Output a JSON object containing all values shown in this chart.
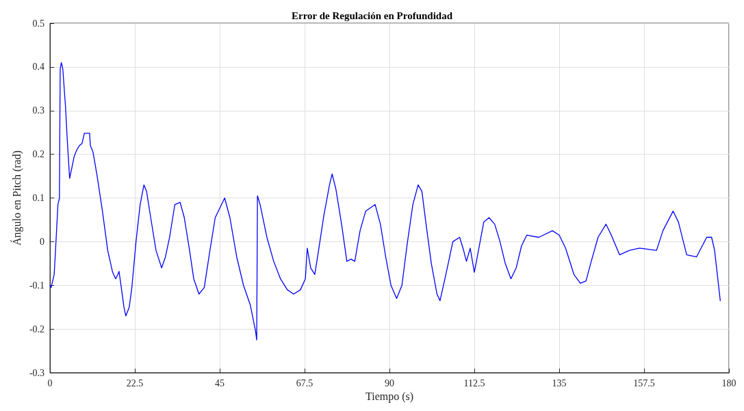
{
  "chart_data": {
    "type": "line",
    "title": "Error de Regulación en Profundidad",
    "xlabel": "Tiempo (s)",
    "ylabel": "Ángulo en Pitch (rad)",
    "xlim": [
      0,
      180
    ],
    "xticks": [
      0,
      22.5,
      45,
      67.5,
      90,
      112.5,
      135,
      157.5,
      180
    ],
    "ylim": [
      -0.3,
      0.5
    ],
    "yticks": [
      -0.3,
      -0.2,
      -0.1,
      0,
      0.1,
      0.2,
      0.3,
      0.4,
      0.5
    ],
    "grid": true,
    "marker": "none",
    "line_style": "solid",
    "series": [
      {
        "color": "#0000ff",
        "x": [
          0,
          0.3,
          1.1,
          1.4,
          2.1,
          2.5,
          2.7,
          3.0,
          3.4,
          4.1,
          4.6,
          5.2,
          5.7,
          6.4,
          7.1,
          7.8,
          8.5,
          9.1,
          10.5,
          10.7,
          11.4,
          12.5,
          13.9,
          15.3,
          16.6,
          17.4,
          18.0,
          18.3,
          18.9,
          19.6,
          20.1,
          21.0,
          21.7,
          22.8,
          23.9,
          24.9,
          25.6,
          26.7,
          28.1,
          29.6,
          30.6,
          31.7,
          33.1,
          34.5,
          35.6,
          37.0,
          38.1,
          39.5,
          40.9,
          42.4,
          43.8,
          46.3,
          47.7,
          49.5,
          51.3,
          53.1,
          54.5,
          54.8,
          55.0,
          55.7,
          57.5,
          59.3,
          61.1,
          62.9,
          64.6,
          66.4,
          67.7,
          68.2,
          69.1,
          70.2,
          71.2,
          72.6,
          74.1,
          74.8,
          75.8,
          77.3,
          78.7,
          79.8,
          80.8,
          82.2,
          83.7,
          86.2,
          87.6,
          89.0,
          90.4,
          91.9,
          93.3,
          94.7,
          96.2,
          97.6,
          98.6,
          99.7,
          101.1,
          102.6,
          103.4,
          104.7,
          105.7,
          106.8,
          108.6,
          109.5,
          110.4,
          111.4,
          112.5,
          113.6,
          115.0,
          116.4,
          117.9,
          119.3,
          120.7,
          122.2,
          123.6,
          125.0,
          126.4,
          129.6,
          133.2,
          135.0,
          136.7,
          138.9,
          140.6,
          142.1,
          143.5,
          145.3,
          147.4,
          148.8,
          151.0,
          153.6,
          156.3,
          160.8,
          162.5,
          165.2,
          166.6,
          168.8,
          171.4,
          174.1,
          175.4,
          176.2,
          177.7
        ],
        "values": [
          -0.1,
          -0.105,
          -0.075,
          -0.03,
          0.085,
          0.1,
          0.395,
          0.41,
          0.395,
          0.31,
          0.23,
          0.145,
          0.165,
          0.195,
          0.21,
          0.22,
          0.225,
          0.248,
          0.248,
          0.22,
          0.205,
          0.15,
          0.07,
          -0.02,
          -0.07,
          -0.085,
          -0.075,
          -0.068,
          -0.105,
          -0.15,
          -0.17,
          -0.15,
          -0.105,
          0.0,
          0.085,
          0.13,
          0.115,
          0.055,
          -0.02,
          -0.06,
          -0.035,
          0.01,
          0.085,
          0.09,
          0.055,
          -0.02,
          -0.085,
          -0.12,
          -0.105,
          -0.02,
          0.055,
          0.1,
          0.055,
          -0.035,
          -0.1,
          -0.145,
          -0.205,
          -0.225,
          0.105,
          0.085,
          0.01,
          -0.045,
          -0.085,
          -0.11,
          -0.12,
          -0.11,
          -0.085,
          -0.015,
          -0.06,
          -0.075,
          -0.02,
          0.06,
          0.13,
          0.155,
          0.12,
          0.04,
          -0.045,
          -0.04,
          -0.045,
          0.025,
          0.07,
          0.085,
          0.04,
          -0.035,
          -0.1,
          -0.13,
          -0.1,
          -0.005,
          0.085,
          0.13,
          0.115,
          0.04,
          -0.05,
          -0.12,
          -0.135,
          -0.085,
          -0.045,
          0.0,
          0.01,
          -0.015,
          -0.045,
          -0.015,
          -0.07,
          -0.02,
          0.045,
          0.055,
          0.04,
          0.0,
          -0.05,
          -0.085,
          -0.06,
          -0.01,
          0.015,
          0.01,
          0.025,
          0.015,
          -0.015,
          -0.075,
          -0.095,
          -0.09,
          -0.045,
          0.01,
          0.04,
          0.015,
          -0.03,
          -0.02,
          -0.015,
          -0.02,
          0.025,
          0.07,
          0.045,
          -0.03,
          -0.035,
          0.01,
          0.01,
          -0.02,
          -0.135
        ]
      }
    ]
  }
}
